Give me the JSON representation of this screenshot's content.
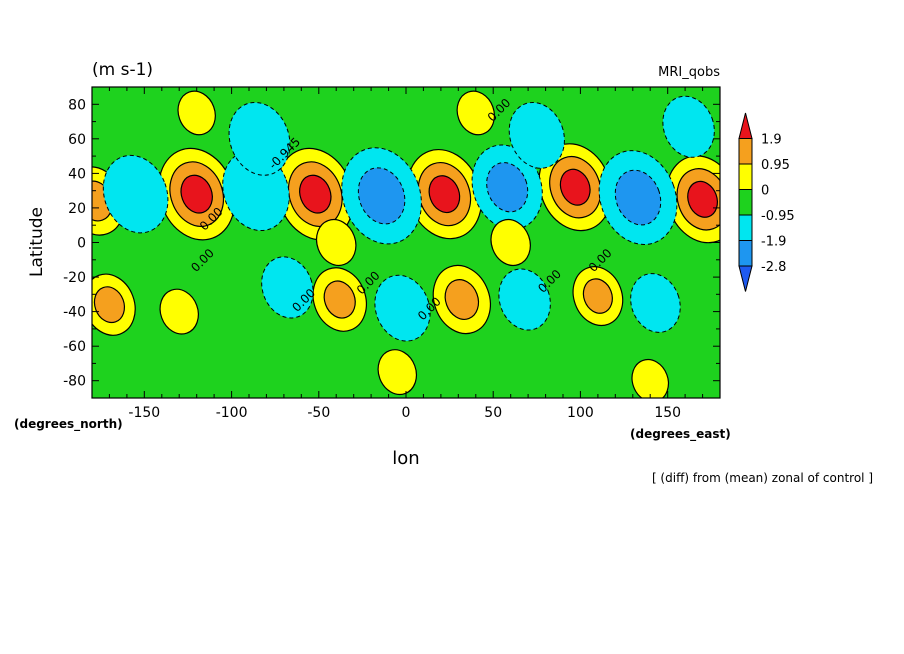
{
  "chart_data": {
    "type": "heatmap",
    "title": "(m s-1)",
    "model_label": "MRI_qobs",
    "xlabel": "lon",
    "ylabel": "Latitude",
    "x_units": "(degrees_east)",
    "y_units": "(degrees_north)",
    "caption": "[ (diff) from (mean) zonal of control ]",
    "xlim": [
      -180,
      180
    ],
    "ylim": [
      -90,
      90
    ],
    "x_ticks": [
      -150,
      -100,
      -50,
      0,
      50,
      100,
      150
    ],
    "x_tick_labels": [
      "-150",
      "-100",
      "-50",
      "0",
      "50",
      "100",
      "150"
    ],
    "y_ticks": [
      80,
      60,
      40,
      20,
      0,
      -20,
      -40,
      -60,
      -80
    ],
    "y_tick_labels": [
      "80",
      "60",
      "40",
      "20",
      "0",
      "-20",
      "-40",
      "-60",
      "-80"
    ],
    "color_levels": [
      -2.8,
      -1.9,
      -0.95,
      0,
      0.95,
      1.9
    ],
    "colorbar_labels": [
      "1.9",
      "0.95",
      "0",
      "-0.95",
      "-1.9",
      "-2.8"
    ],
    "colors": {
      "above_1.9": "#e8141c",
      "0.95_to_1.9": "#f5a01e",
      "0_to_0.95": "#ffff00",
      "-0.95_to_0": "#1ed21e",
      "-1.9_to_-0.95": "#00e6f0",
      "-2.8_to_-1.9": "#1e96f0",
      "below_-2.8": "#1e5af0"
    },
    "contour_labels": [
      "0.00",
      "0.00",
      "0.00",
      "0.00",
      "0.00",
      "0.00",
      "0.00",
      "0.00",
      "-0.945"
    ],
    "features": [
      {
        "lon": -120,
        "lat": 28,
        "value": 2.4
      },
      {
        "lon": -52,
        "lat": 28,
        "value": 2.4
      },
      {
        "lon": 22,
        "lat": 28,
        "value": 2.3
      },
      {
        "lon": 97,
        "lat": 32,
        "value": 2.2
      },
      {
        "lon": 170,
        "lat": 25,
        "value": 2.2
      },
      {
        "lon": -178,
        "lat": 24,
        "value": 1.4
      },
      {
        "lon": -155,
        "lat": 28,
        "value": -1.8
      },
      {
        "lon": -86,
        "lat": 30,
        "value": -1.9
      },
      {
        "lon": -84,
        "lat": 60,
        "value": -1.6
      },
      {
        "lon": -14,
        "lat": 27,
        "value": -2.6
      },
      {
        "lon": 58,
        "lat": 32,
        "value": -2.1
      },
      {
        "lon": 133,
        "lat": 26,
        "value": -2.5
      },
      {
        "lon": 75,
        "lat": 62,
        "value": -1.3
      },
      {
        "lon": 162,
        "lat": 67,
        "value": -1.1
      },
      {
        "lon": -170,
        "lat": -36,
        "value": 1.1
      },
      {
        "lon": -38,
        "lat": -33,
        "value": 1.2
      },
      {
        "lon": 32,
        "lat": -33,
        "value": 1.4
      },
      {
        "lon": 110,
        "lat": -31,
        "value": 1.0
      },
      {
        "lon": -68,
        "lat": -26,
        "value": -1.1
      },
      {
        "lon": -2,
        "lat": -38,
        "value": -1.3
      },
      {
        "lon": 68,
        "lat": -33,
        "value": -1.1
      },
      {
        "lon": 143,
        "lat": -35,
        "value": -1.0
      },
      {
        "lon": -40,
        "lat": 0,
        "value": 0.45
      },
      {
        "lon": 60,
        "lat": 0,
        "value": 0.45
      },
      {
        "lon": -130,
        "lat": -40,
        "value": 0.4
      },
      {
        "lon": -5,
        "lat": -75,
        "value": 0.4
      },
      {
        "lon": -120,
        "lat": 75,
        "value": 0.35
      },
      {
        "lon": 40,
        "lat": 75,
        "value": 0.35
      },
      {
        "lon": 140,
        "lat": -80,
        "value": 0.3
      }
    ]
  }
}
